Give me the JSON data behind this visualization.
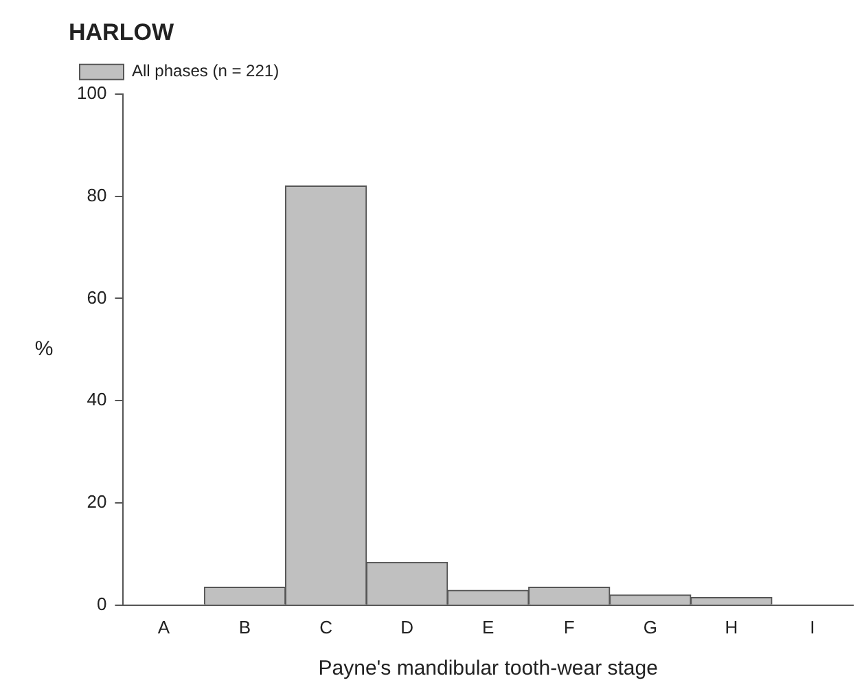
{
  "chart_data": {
    "type": "bar",
    "title": "HARLOW",
    "xlabel": "Payne's mandibular tooth-wear stage",
    "ylabel": "%",
    "categories": [
      "A",
      "B",
      "C",
      "D",
      "E",
      "F",
      "G",
      "H",
      "I"
    ],
    "series": [
      {
        "name": "All phases (n = 221)",
        "color": "#c0c0c0",
        "values": [
          0,
          3.5,
          82,
          8.4,
          2.9,
          3.5,
          2.0,
          1.5,
          0
        ]
      }
    ],
    "ylim": [
      0,
      100
    ],
    "yticks": [
      0,
      20,
      40,
      60,
      80,
      100
    ],
    "grid": false,
    "legend": "top left"
  }
}
